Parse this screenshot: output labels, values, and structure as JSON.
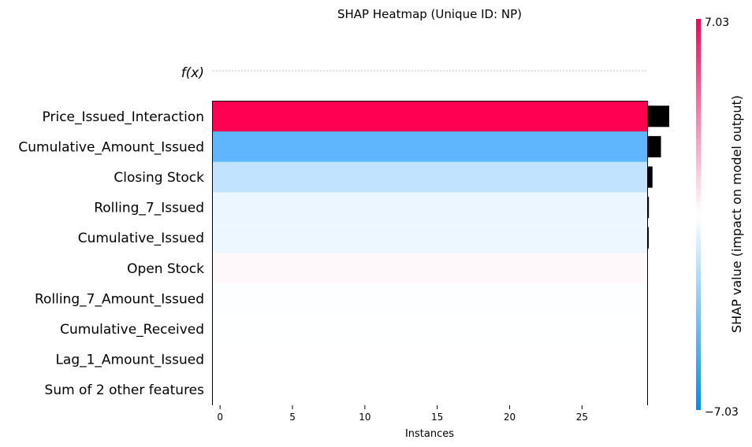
{
  "chart_data": {
    "type": "heatmap",
    "title": "SHAP Heatmap (Unique ID: NP)",
    "xlabel": "Instances",
    "fx_label": "f(x)",
    "xlim": [
      -0.5,
      29.5
    ],
    "x_ticks": [
      0,
      5,
      10,
      15,
      20,
      25
    ],
    "features": [
      "Price_Issued_Interaction",
      "Cumulative_Amount_Issued",
      "Closing Stock",
      "Rolling_7_Issued",
      "Cumulative_Issued",
      "Open Stock",
      "Rolling_7_Amount_Issued",
      "Cumulative_Received",
      "Lag_1_Amount_Issued",
      "Sum of 2 other features"
    ],
    "shap_values": [
      7.03,
      -4.4,
      -1.7,
      -0.55,
      -0.5,
      0.2,
      -0.05,
      -0.02,
      0.0,
      0.0
    ],
    "mean_abs_importance": [
      7.03,
      4.4,
      1.7,
      0.55,
      0.5,
      0.2,
      0.05,
      0.02,
      0.0,
      0.0
    ],
    "colorbar": {
      "label": "SHAP value (impact on model output)",
      "max_label": "7.03",
      "min_label": "−7.03",
      "vmin": -7.03,
      "vmax": 7.03,
      "low_color": "#008bfb",
      "mid_color": "#ffffff",
      "high_color": "#ff0052"
    },
    "importance_bar_color": "#000000"
  }
}
